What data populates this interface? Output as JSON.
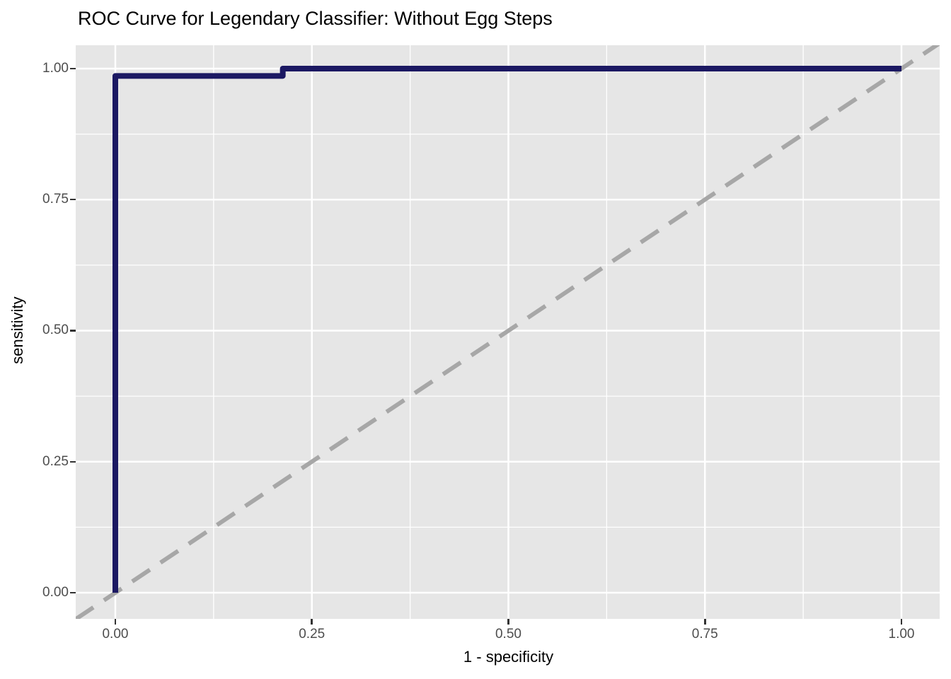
{
  "chart_data": {
    "type": "line",
    "subtype": "roc-step-curve",
    "title": "ROC Curve for Legendary Classifier: Without Egg Steps",
    "xlabel": "1 - specificity",
    "ylabel": "sensitivity",
    "x_ticks": {
      "values": [
        0,
        0.25,
        0.5,
        0.75,
        1.0
      ],
      "labels": [
        "0.00",
        "0.25",
        "0.50",
        "0.75",
        "1.00"
      ]
    },
    "y_ticks": {
      "values": [
        0,
        0.25,
        0.5,
        0.75,
        1.0
      ],
      "labels": [
        "0.00",
        "0.25",
        "0.50",
        "0.75",
        "1.00"
      ]
    },
    "minor_ticks": [
      0.125,
      0.375,
      0.625,
      0.875
    ],
    "x_domain": [
      -0.0504,
      1.0486
    ],
    "y_domain": [
      -0.0499,
      1.0445
    ],
    "xlim": [
      0,
      1
    ],
    "ylim": [
      0,
      1
    ],
    "grid": "on",
    "legend": "none",
    "series": [
      {
        "name": "ROC curve",
        "color": "#1b1862",
        "linewidth": 8,
        "points": [
          [
            0,
            0
          ],
          [
            0,
            0.986
          ],
          [
            0.213,
            0.986
          ],
          [
            0.213,
            1.0
          ],
          [
            1.0,
            1.0
          ]
        ]
      }
    ],
    "reference_line": {
      "slope": 1,
      "intercept": 0,
      "style": "dashed",
      "color": "#a7a7a7",
      "linewidth": 6,
      "dash": [
        30,
        18
      ]
    },
    "colors": {
      "panel_bg": "#e6e6e6",
      "grid_major": "#ffffff",
      "grid_minor": "#ffffff",
      "tick_mark": "#333333",
      "tick_label": "#4d4d4d",
      "title": "#000000",
      "axis_label": "#000000"
    }
  }
}
